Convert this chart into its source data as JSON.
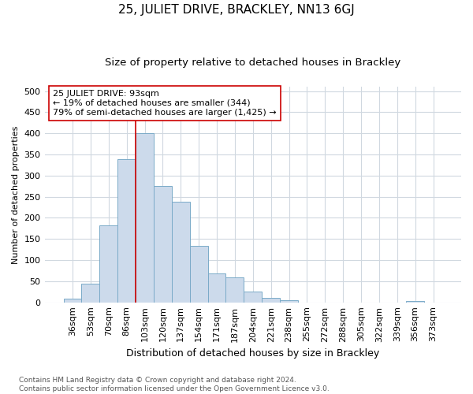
{
  "title": "25, JULIET DRIVE, BRACKLEY, NN13 6GJ",
  "subtitle": "Size of property relative to detached houses in Brackley",
  "xlabel": "Distribution of detached houses by size in Brackley",
  "ylabel": "Number of detached properties",
  "footnote1": "Contains HM Land Registry data © Crown copyright and database right 2024.",
  "footnote2": "Contains public sector information licensed under the Open Government Licence v3.0.",
  "categories": [
    "36sqm",
    "53sqm",
    "70sqm",
    "86sqm",
    "103sqm",
    "120sqm",
    "137sqm",
    "154sqm",
    "171sqm",
    "187sqm",
    "204sqm",
    "221sqm",
    "238sqm",
    "255sqm",
    "272sqm",
    "288sqm",
    "305sqm",
    "322sqm",
    "339sqm",
    "356sqm",
    "373sqm"
  ],
  "values": [
    8,
    45,
    182,
    338,
    400,
    275,
    238,
    133,
    68,
    60,
    25,
    10,
    5,
    0,
    0,
    0,
    0,
    0,
    0,
    3,
    0
  ],
  "bar_color": "#ccdaeb",
  "bar_edge_color": "#7aaac8",
  "vline_color": "#cc0000",
  "vline_x_index": 4,
  "annotation_text": "25 JULIET DRIVE: 93sqm\n← 19% of detached houses are smaller (344)\n79% of semi-detached houses are larger (1,425) →",
  "annotation_box_color": "#ffffff",
  "annotation_box_edge": "#cc0000",
  "ylim": [
    0,
    510
  ],
  "yticks": [
    0,
    50,
    100,
    150,
    200,
    250,
    300,
    350,
    400,
    450,
    500
  ],
  "background_color": "#ffffff",
  "plot_bg_color": "#ffffff",
  "grid_color": "#d0d8e0",
  "title_fontsize": 11,
  "subtitle_fontsize": 9.5,
  "xlabel_fontsize": 9,
  "ylabel_fontsize": 8,
  "tick_fontsize": 8,
  "footnote_fontsize": 6.5
}
